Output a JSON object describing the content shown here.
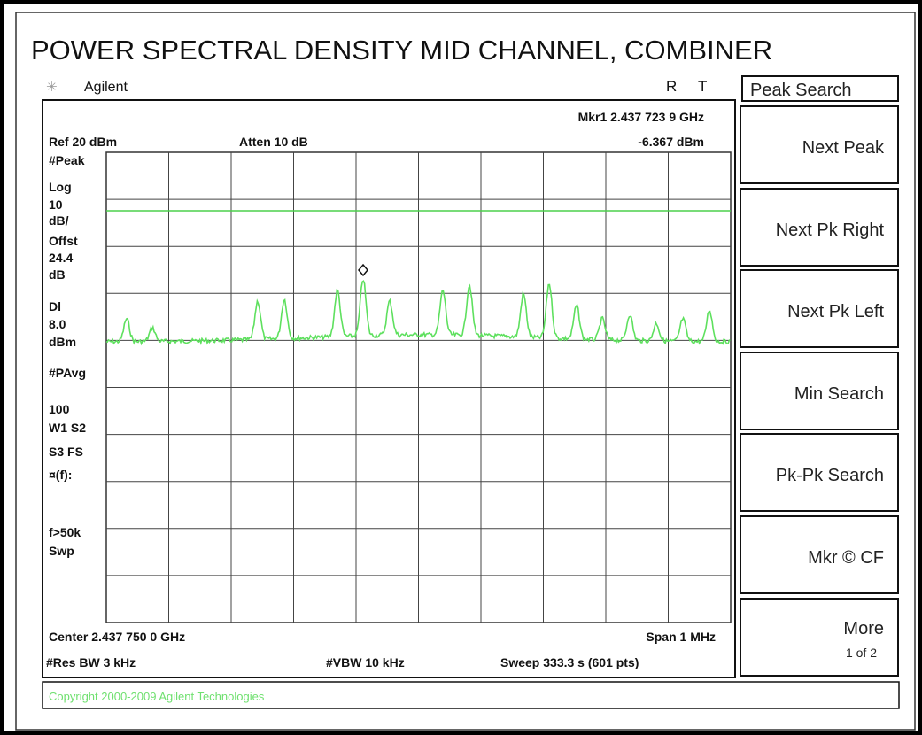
{
  "title": "POWER SPECTRAL DENSITY MID CHANNEL, COMBINER",
  "header": {
    "brand": "Agilent",
    "status_r": "R",
    "status_t": "T"
  },
  "marker": {
    "label": "Mkr1  2.437 723 9 GHz",
    "level": "-6.367 dBm"
  },
  "settings": {
    "ref": "Ref 20 dBm",
    "atten": "Atten 10 dB"
  },
  "left_labels": [
    "#Peak",
    "Log",
    "10",
    "dB/",
    "Offst",
    "24.4",
    "dB",
    "Dl",
    "8.0",
    "dBm",
    "#PAvg",
    "100",
    "W1  S2",
    "S3  FS",
    "¤(f):",
    "f>50k",
    "Swp"
  ],
  "bottom": {
    "center": "Center 2.437 750 0 GHz",
    "span": "Span 1 MHz",
    "res_bw": "#Res BW 3 kHz",
    "vbw": "#VBW  10  kHz",
    "sweep": "Sweep  333.3 s (601 pts)"
  },
  "softkeys": {
    "menu": "Peak Search",
    "keys": [
      "Next Peak",
      "Next Pk Right",
      "Next Pk Left",
      "Min Search",
      "Pk-Pk Search",
      "Mkr © CF",
      "More"
    ],
    "more_sub": "1 of 2"
  },
  "footer": "Copyright 2000-2009 Agilent Technologies"
}
